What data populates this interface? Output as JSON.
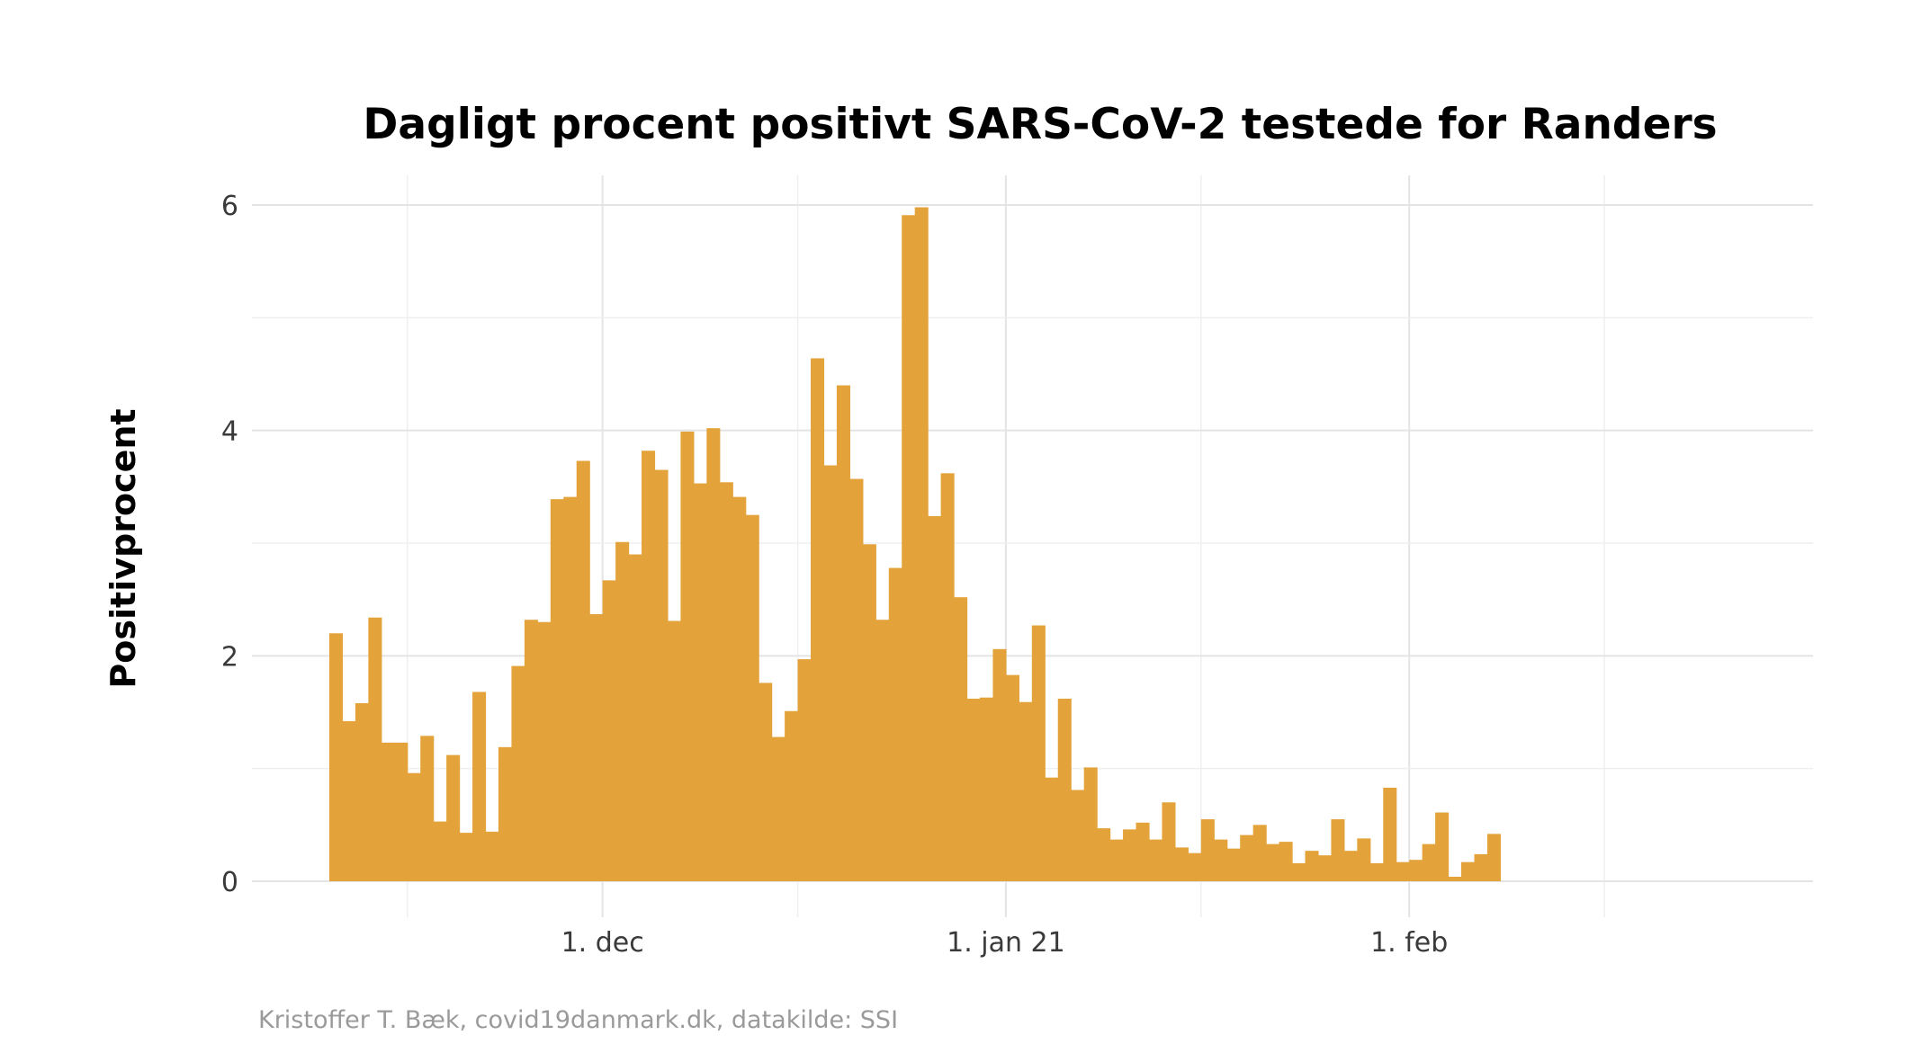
{
  "chart_data": {
    "type": "bar",
    "title": "Dagligt procent positivt SARS-CoV-2 testede for Randers",
    "ylabel": "Positivprocent",
    "xlabel": "",
    "caption": "Kristoffer T. Bæk, covid19danmark.dk, datakilde: SSI",
    "color": "#e3a33a",
    "start_date": "2020-11-10",
    "ylim": [
      0,
      6.2
    ],
    "y_ticks": [
      0,
      2,
      4,
      6
    ],
    "x_ticks": [
      {
        "date": "2020-12-01",
        "label": "1. dec"
      },
      {
        "date": "2021-01-01",
        "label": "1. jan 21"
      },
      {
        "date": "2021-02-01",
        "label": "1. feb"
      }
    ],
    "x_minor_ticks": [
      "2020-11-16",
      "2020-12-16",
      "2021-01-16",
      "2021-02-16"
    ],
    "grid": true,
    "values": [
      2.2,
      1.42,
      1.58,
      2.34,
      1.23,
      1.23,
      0.96,
      1.29,
      0.53,
      1.12,
      0.43,
      1.68,
      0.44,
      1.19,
      1.91,
      2.32,
      2.3,
      3.39,
      3.41,
      3.73,
      2.37,
      2.67,
      3.01,
      2.9,
      3.82,
      3.65,
      2.31,
      3.99,
      3.53,
      4.02,
      3.54,
      3.41,
      3.25,
      1.76,
      1.28,
      1.51,
      1.97,
      4.64,
      3.69,
      4.4,
      3.57,
      2.99,
      2.32,
      2.78,
      5.91,
      5.98,
      3.24,
      3.62,
      2.52,
      1.62,
      1.63,
      2.06,
      1.83,
      1.59,
      2.27,
      0.92,
      1.62,
      0.81,
      1.01,
      0.47,
      0.37,
      0.46,
      0.52,
      0.37,
      0.7,
      0.3,
      0.25,
      0.55,
      0.37,
      0.29,
      0.41,
      0.5,
      0.33,
      0.35,
      0.16,
      0.27,
      0.23,
      0.55,
      0.27,
      0.38,
      0.16,
      0.83,
      0.17,
      0.19,
      0.33,
      0.61,
      0.04,
      0.17,
      0.24,
      0.42
    ]
  }
}
